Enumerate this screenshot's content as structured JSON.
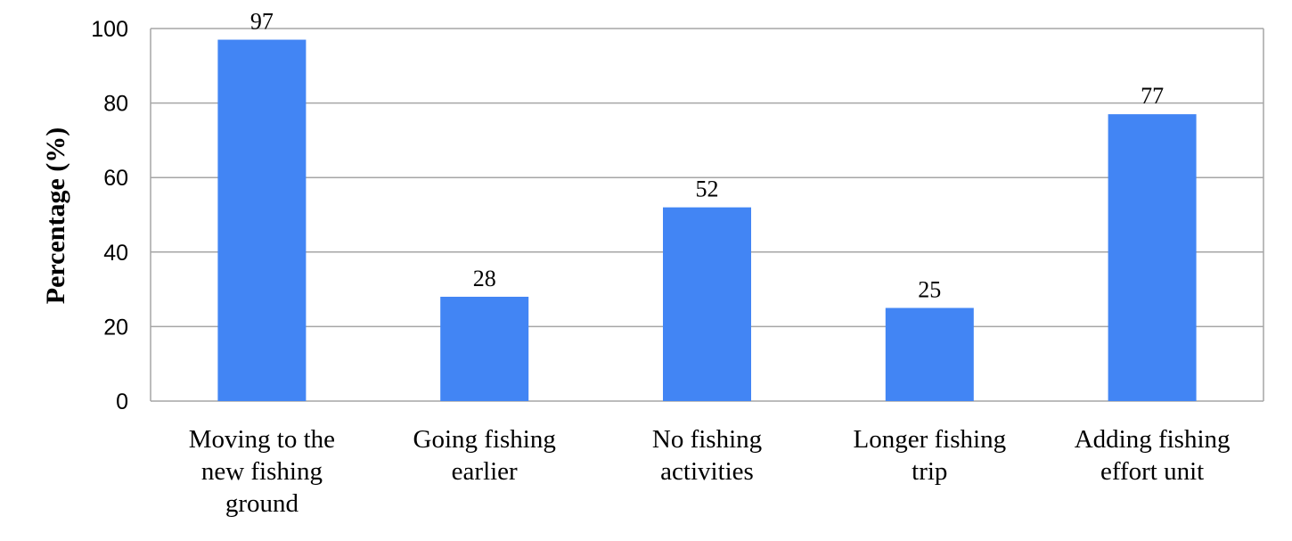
{
  "chart_data": {
    "type": "bar",
    "categories": [
      "Moving to the new fishing ground",
      "Going fishing earlier",
      "No fishing activities",
      "Longer fishing trip",
      "Adding fishing effort unit"
    ],
    "category_lines": [
      [
        "Moving to the",
        "new fishing",
        "ground"
      ],
      [
        "Going fishing",
        "earlier"
      ],
      [
        "No fishing",
        "activities"
      ],
      [
        "Longer fishing",
        "trip"
      ],
      [
        "Adding fishing",
        "effort unit"
      ]
    ],
    "values": [
      97,
      28,
      52,
      25,
      77
    ],
    "data_labels": [
      "97",
      "28",
      "52",
      "25",
      "77"
    ],
    "ylabel": "Percentage (%)",
    "xlabel": "",
    "ylim": [
      0,
      100
    ],
    "yticks": [
      0,
      20,
      40,
      60,
      80,
      100
    ],
    "ytick_labels": [
      "0",
      "20",
      "40",
      "60",
      "80",
      "100"
    ],
    "grid": true,
    "bar_color": "#4285F4",
    "grid_color": "#A6A6A6"
  }
}
